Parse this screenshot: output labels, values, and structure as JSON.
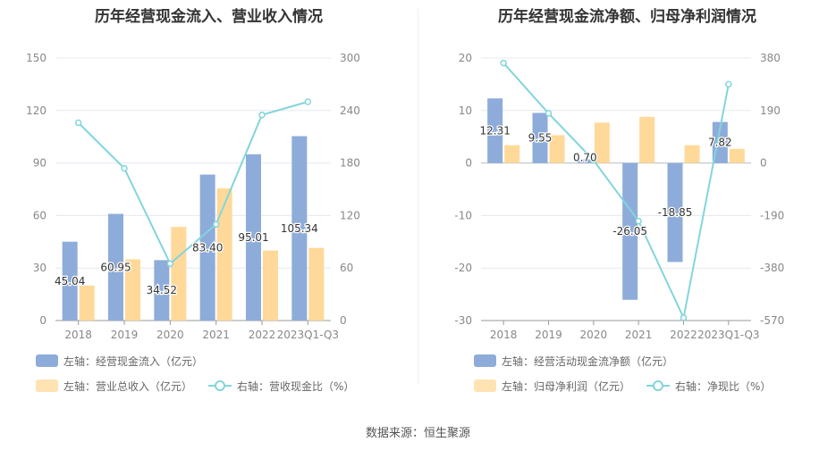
{
  "footer": {
    "source": "数据来源：恒生聚源"
  },
  "colors": {
    "bar_blue": "#8eacd9",
    "bar_orange": "#ffd99a",
    "line_cyan": "#83d5db",
    "grid": "#e6e8ee",
    "axis_text": "#888888",
    "label_text": "#333333"
  },
  "chart_data": [
    {
      "type": "bar",
      "title": "历年经营现金流入、营业收入情况",
      "categories": [
        "2018",
        "2019",
        "2020",
        "2021",
        "2022",
        "2023Q1-Q3"
      ],
      "left_axis": {
        "min": 0,
        "max": 150,
        "ticks": [
          "0",
          "30",
          "60",
          "90",
          "120",
          "150"
        ]
      },
      "right_axis": {
        "min": 0,
        "max": 300,
        "ticks": [
          "0",
          "60",
          "120",
          "180",
          "240",
          "300"
        ]
      },
      "series": [
        {
          "name": "左轴：经营现金流入（亿元）",
          "kind": "bar",
          "axis": "left",
          "values": [
            45.04,
            60.95,
            34.52,
            83.4,
            95.01,
            105.34
          ],
          "labels": [
            "45.04",
            "60.95",
            "34.52",
            "83.40",
            "95.01",
            "105.34"
          ]
        },
        {
          "name": "左轴：营业总收入（亿元）",
          "kind": "bar",
          "axis": "left",
          "values": [
            20,
            35,
            53.5,
            75.5,
            40,
            41.5
          ]
        },
        {
          "name": "右轴：营收现金比（%）",
          "kind": "line",
          "axis": "right",
          "values": [
            226,
            174,
            65,
            110,
            235,
            250
          ]
        }
      ],
      "grid": true,
      "legend_position": "bottom"
    },
    {
      "type": "bar",
      "title": "历年经营现金流净额、归母净利润情况",
      "categories": [
        "2018",
        "2019",
        "2020",
        "2021",
        "2022",
        "2023Q1-Q3"
      ],
      "left_axis": {
        "min": -30,
        "max": 20,
        "ticks": [
          "-30",
          "-20",
          "-10",
          "0",
          "10",
          "20"
        ]
      },
      "right_axis": {
        "min": -570,
        "max": 380,
        "ticks": [
          "-570",
          "-380",
          "-190",
          "0",
          "190",
          "380"
        ]
      },
      "series": [
        {
          "name": "左轴：经营活动现金流净额（亿元）",
          "kind": "bar",
          "axis": "left",
          "values": [
            12.31,
            9.55,
            0.7,
            -26.05,
            -18.85,
            7.82
          ],
          "labels": [
            "12.31",
            "9.55",
            "0.70",
            "-26.05",
            "-18.85",
            "7.82"
          ]
        },
        {
          "name": "左轴：归母净利润（亿元）",
          "kind": "bar",
          "axis": "left",
          "values": [
            3.4,
            5.3,
            7.7,
            8.8,
            3.4,
            2.7
          ]
        },
        {
          "name": "右轴：净现比（%）",
          "kind": "line",
          "axis": "right",
          "values": [
            362,
            180,
            10,
            -210,
            -560,
            285
          ]
        }
      ],
      "grid": true,
      "legend_position": "bottom"
    }
  ]
}
